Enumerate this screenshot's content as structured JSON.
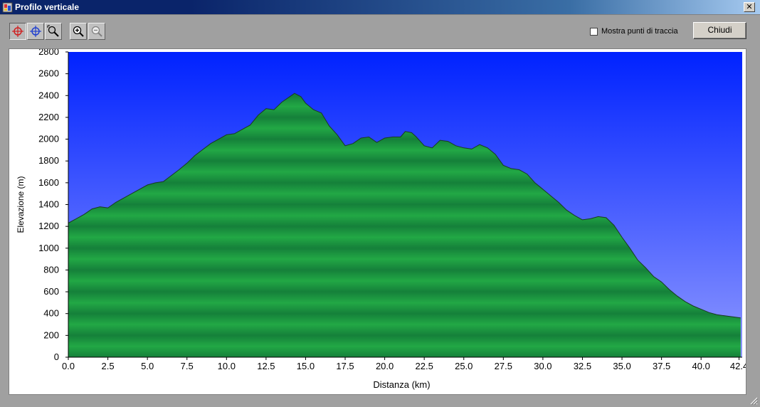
{
  "window": {
    "title": "Profilo verticale",
    "close_glyph": "✕"
  },
  "toolbar": {
    "tools": [
      {
        "name": "red-crosshair-icon",
        "active": true
      },
      {
        "name": "blue-crosshair-icon",
        "active": false
      },
      {
        "name": "magnifier-select-icon",
        "active": false
      },
      {
        "name": "zoom-in-icon",
        "active": false
      },
      {
        "name": "zoom-out-icon",
        "active": false
      }
    ],
    "show_track_points_label": "Mostra punti di traccia",
    "show_track_points_checked": false,
    "close_button_label": "Chiudi"
  },
  "colors": {
    "sky_top": "#0022ff",
    "sky_bottom": "#8e98ff",
    "fill_green": "#22a845",
    "fill_dark": "#15803a",
    "outline": "#1a3a22"
  },
  "chart_data": {
    "type": "area",
    "xlabel": "Distanza    (km)",
    "ylabel": "Elevazione (m)",
    "xlim": [
      0,
      42.6
    ],
    "ylim": [
      0,
      2800
    ],
    "xticks": [
      "0.0",
      "2.5",
      "5.0",
      "7.5",
      "10.0",
      "12.5",
      "15.0",
      "17.5",
      "20.0",
      "22.5",
      "25.0",
      "27.5",
      "30.0",
      "32.5",
      "35.0",
      "37.5",
      "40.0",
      "42.4"
    ],
    "yticks": [
      "0",
      "200",
      "400",
      "600",
      "800",
      "1000",
      "1200",
      "1400",
      "1600",
      "1800",
      "2000",
      "2200",
      "2400",
      "2600",
      "2800"
    ],
    "x": [
      0,
      0.5,
      1,
      1.5,
      2,
      2.5,
      3,
      4,
      5,
      5.5,
      6,
      7,
      7.5,
      8,
      9,
      10,
      10.5,
      11,
      11.5,
      12,
      12.5,
      13,
      13.5,
      14,
      14.3,
      14.7,
      15,
      15.5,
      16,
      16.5,
      17,
      17.5,
      18,
      18.5,
      19,
      19.5,
      20,
      20.5,
      21,
      21.3,
      21.7,
      22,
      22.5,
      23,
      23.5,
      24,
      24.5,
      25,
      25.5,
      26,
      26.5,
      27,
      27.5,
      28,
      28.5,
      29,
      29.5,
      30,
      30.5,
      31,
      31.5,
      32,
      32.5,
      33,
      33.5,
      34,
      34.5,
      35,
      35.5,
      36,
      36.5,
      37,
      37.5,
      38,
      38.5,
      39,
      39.5,
      40,
      40.5,
      41,
      41.5,
      42,
      42.5
    ],
    "values": [
      1230,
      1270,
      1310,
      1360,
      1380,
      1370,
      1420,
      1500,
      1580,
      1600,
      1610,
      1720,
      1780,
      1850,
      1960,
      2040,
      2050,
      2090,
      2130,
      2220,
      2280,
      2270,
      2340,
      2390,
      2420,
      2390,
      2330,
      2270,
      2240,
      2120,
      2040,
      1940,
      1960,
      2010,
      2020,
      1970,
      2010,
      2020,
      2020,
      2070,
      2060,
      2020,
      1940,
      1920,
      1990,
      1980,
      1940,
      1920,
      1910,
      1950,
      1920,
      1860,
      1760,
      1730,
      1720,
      1680,
      1600,
      1540,
      1480,
      1420,
      1350,
      1300,
      1260,
      1270,
      1290,
      1280,
      1210,
      1100,
      1000,
      890,
      820,
      740,
      690,
      620,
      560,
      510,
      470,
      440,
      410,
      390,
      380,
      370,
      360
    ]
  }
}
